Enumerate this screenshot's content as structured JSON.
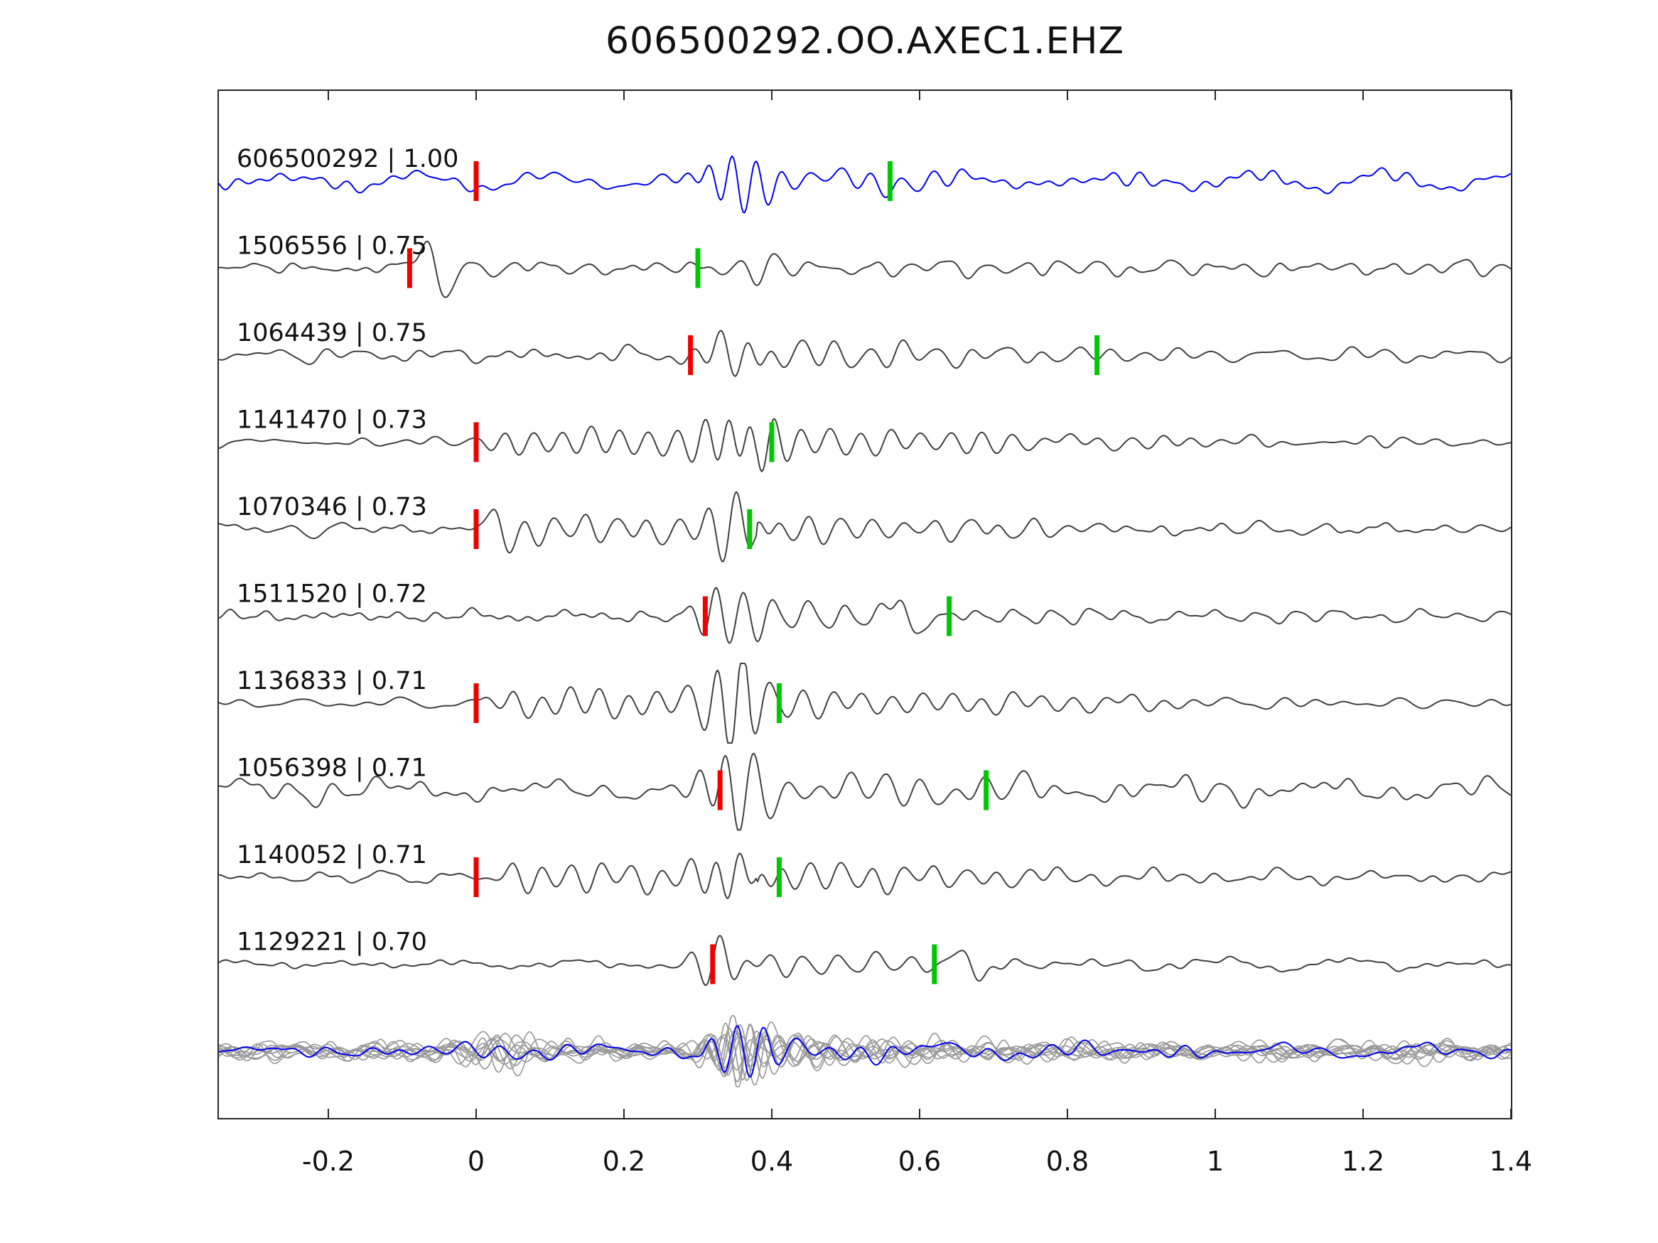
{
  "title": "606500292.OO.AXEC1.EHZ",
  "chart_data": {
    "type": "line",
    "title": "606500292.OO.AXEC1.EHZ",
    "xlabel": "",
    "ylabel": "",
    "x_range": [
      -0.35,
      1.4
    ],
    "grid": false,
    "x_ticks": [
      -0.2,
      0,
      0.2,
      0.4,
      0.6,
      0.8,
      1,
      1.2,
      1.4
    ],
    "x_tick_labels": [
      "-0.2",
      "0",
      "0.2",
      "0.4",
      "0.6",
      "0.8",
      "1",
      "1.2",
      "1.4"
    ],
    "colors": {
      "template_trace": "#0000ee",
      "match_trace": "#3f3f3f",
      "overlay_trace": "#9a9a9a",
      "red_pick": "#f20000",
      "green_pick": "#00c800",
      "frame": "#262626",
      "text": "#111111"
    },
    "rows": [
      {
        "label": "606500292 | 1.00",
        "id": "606500292",
        "corr": "1.00",
        "color": "template",
        "red_pick": 0.0,
        "green_pick": 0.56,
        "shape": {
          "noise": 8,
          "burst": 0.35,
          "amp": 40,
          "freq": 30,
          "decay": 0.22
        }
      },
      {
        "label": "1506556 | 0.75",
        "id": "1506556",
        "corr": "0.75",
        "color": "match",
        "red_pick": -0.09,
        "green_pick": 0.3,
        "shape": {
          "noise": 6,
          "spike": [
            -0.055,
            40
          ],
          "burst": 0.38,
          "amp": 22,
          "freq": 22,
          "decay": 0.3
        }
      },
      {
        "label": "1064439 | 0.75",
        "id": "1064439",
        "corr": "0.75",
        "color": "match",
        "red_pick": 0.29,
        "green_pick": 0.84,
        "shape": {
          "noise": 6,
          "burst": 0.36,
          "amp": 38,
          "freq": 26,
          "decay": 0.3
        }
      },
      {
        "label": "1141470 | 0.73",
        "id": "1141470",
        "corr": "0.73",
        "color": "match",
        "red_pick": 0.0,
        "green_pick": 0.4,
        "shape": {
          "noise": 5,
          "onset": 0.0,
          "burst": 0.36,
          "amp": 44,
          "freq": 30,
          "decay": 0.4
        }
      },
      {
        "label": "1070346 | 0.73",
        "id": "1070346",
        "corr": "0.73",
        "color": "match",
        "red_pick": 0.0,
        "green_pick": 0.37,
        "shape": {
          "noise": 5,
          "onset": 0.02,
          "spike": [
            0.035,
            28
          ],
          "burst": 0.36,
          "amp": 40,
          "freq": 28,
          "decay": 0.4
        }
      },
      {
        "label": "1511520 | 0.72",
        "id": "1511520",
        "corr": "0.72",
        "color": "match",
        "red_pick": 0.31,
        "green_pick": 0.64,
        "shape": {
          "noise": 5,
          "burst": 0.335,
          "amp": 40,
          "freq": 26,
          "decay": 0.25,
          "spike": [
            0.585,
            30
          ]
        }
      },
      {
        "label": "1136833 | 0.71",
        "id": "1136833",
        "corr": "0.71",
        "color": "match",
        "red_pick": 0.0,
        "green_pick": 0.41,
        "shape": {
          "noise": 5,
          "onset": 0.0,
          "burst": 0.35,
          "amp": 44,
          "freq": 30,
          "decay": 0.4
        }
      },
      {
        "label": "1056398 | 0.71",
        "id": "1056398",
        "corr": "0.71",
        "color": "match",
        "red_pick": 0.33,
        "green_pick": 0.69,
        "shape": {
          "noise": 9,
          "burst": 0.34,
          "amp": 44,
          "freq": 27,
          "decay": 0.55
        }
      },
      {
        "label": "1140052 | 0.71",
        "id": "1140052",
        "corr": "0.71",
        "color": "match",
        "red_pick": 0.0,
        "green_pick": 0.41,
        "shape": {
          "noise": 5,
          "onset": 0.0,
          "burst": 0.36,
          "amp": 46,
          "freq": 29,
          "decay": 0.4
        }
      },
      {
        "label": "1129221 | 0.70",
        "id": "1129221",
        "corr": "0.70",
        "color": "match",
        "red_pick": 0.32,
        "green_pick": 0.62,
        "shape": {
          "noise": 5,
          "burst": 0.335,
          "amp": 40,
          "freq": 25,
          "decay": 0.3,
          "spike": [
            0.67,
            30
          ]
        }
      }
    ],
    "overlay_row": {
      "description": "stacked overlay of all matched traces (gray) with template (blue) on top",
      "gray_count": 10,
      "has_template": true,
      "label": null
    }
  }
}
